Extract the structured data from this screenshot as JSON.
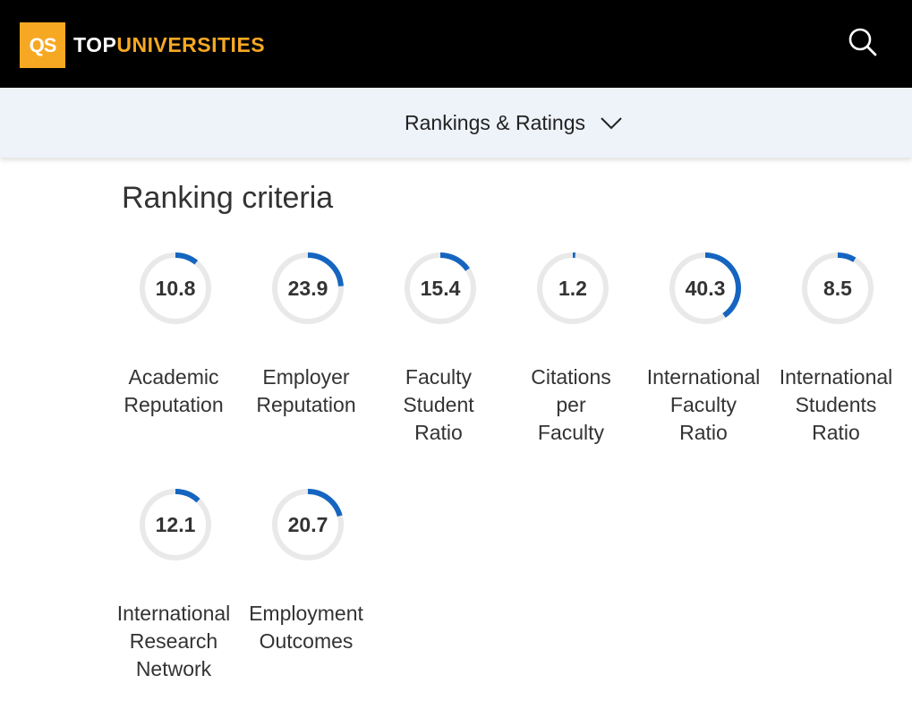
{
  "header": {
    "logo_badge": "QS",
    "logo_top": "TOP",
    "logo_universities": "UNIVERSITIES",
    "search_icon": "search-icon"
  },
  "subnav": {
    "label": "Rankings & Ratings",
    "icon": "chevron-down-icon"
  },
  "section": {
    "title": "Ranking criteria"
  },
  "criteria": [
    {
      "value": "10.8",
      "label_lines": [
        "Academic",
        "Reputation"
      ],
      "percent": 10.8
    },
    {
      "value": "23.9",
      "label_lines": [
        "Employer",
        "Reputation"
      ],
      "percent": 23.9
    },
    {
      "value": "15.4",
      "label_lines": [
        "Faculty",
        "Student",
        "Ratio"
      ],
      "percent": 15.4
    },
    {
      "value": "1.2",
      "label_lines": [
        "Citations",
        "per",
        "Faculty"
      ],
      "percent": 1.2
    },
    {
      "value": "40.3",
      "label_lines": [
        "International",
        "Faculty",
        "Ratio"
      ],
      "percent": 40.3
    },
    {
      "value": "8.5",
      "label_lines": [
        "International",
        "Students",
        "Ratio"
      ],
      "percent": 8.5
    },
    {
      "value": "12.1",
      "label_lines": [
        "International",
        "Research",
        "Network"
      ],
      "percent": 12.1
    },
    {
      "value": "20.7",
      "label_lines": [
        "Employment",
        "Outcomes"
      ],
      "percent": 20.7
    }
  ],
  "colors": {
    "brand": "#f7a823",
    "ring_track": "#e9e9e9",
    "ring_fill": "#1565c0"
  }
}
